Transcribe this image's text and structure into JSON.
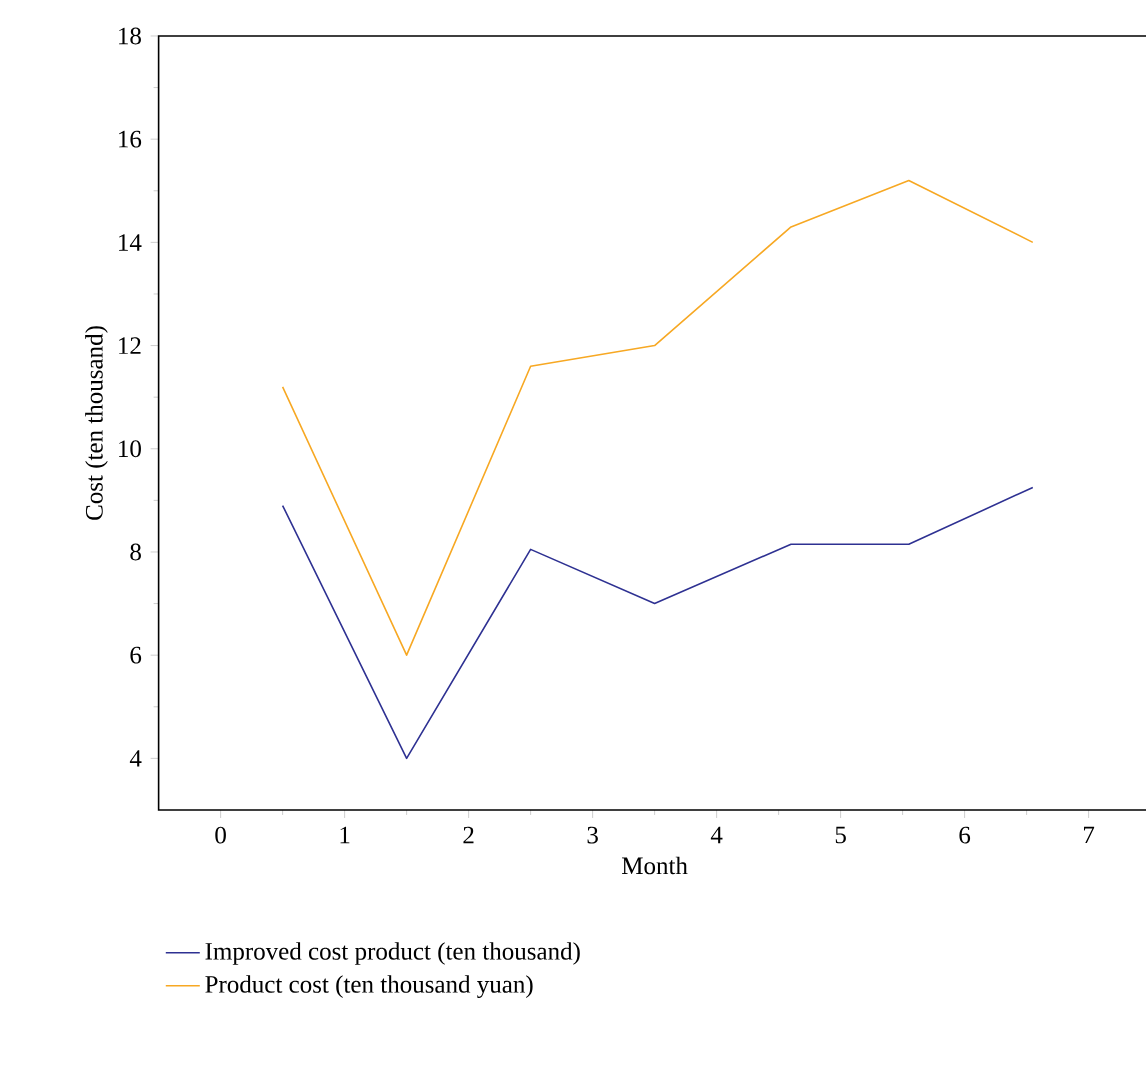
{
  "chart_data": {
    "type": "line",
    "xlabel": "Month",
    "ylabel": "Cost (ten thousand)",
    "xlim": [
      -0.5,
      7.5
    ],
    "ylim": [
      3,
      18
    ],
    "xticks": [
      0,
      1,
      2,
      3,
      4,
      5,
      6,
      7
    ],
    "yticks": [
      4,
      6,
      8,
      10,
      12,
      14,
      16,
      18
    ],
    "legend": "bottom",
    "line_style": "solid",
    "series": [
      {
        "name": "Improved cost product (ten thousand)",
        "color": "#2e3192",
        "x": [
          0.5,
          1.5,
          2.5,
          3.5,
          4.6,
          5.55,
          6.55
        ],
        "values": [
          8.9,
          4.0,
          8.05,
          7.0,
          8.15,
          8.15,
          9.25
        ]
      },
      {
        "name": "Product cost (ten thousand yuan)",
        "color": "#f7a823",
        "x": [
          0.5,
          1.5,
          2.5,
          3.5,
          4.6,
          5.55,
          6.55
        ],
        "values": [
          11.2,
          6.0,
          11.6,
          12.0,
          14.3,
          15.2,
          14.0
        ]
      }
    ]
  }
}
